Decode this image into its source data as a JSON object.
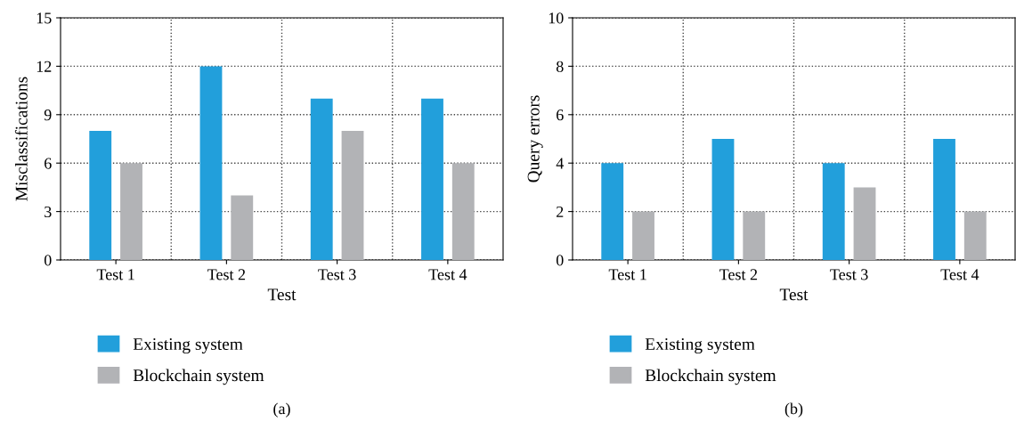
{
  "chart_data": [
    {
      "type": "bar",
      "categories": [
        "Test 1",
        "Test 2",
        "Test 3",
        "Test 4"
      ],
      "xlabel": "Test",
      "ylabel": "Misclassifications",
      "ylim": [
        0,
        15
      ],
      "yticks": [
        0,
        3,
        6,
        9,
        12,
        15
      ],
      "grid": true,
      "legend": "bottom",
      "series": [
        {
          "name": "Existing system",
          "color": "#229fdb",
          "values": [
            8,
            12,
            10,
            10
          ]
        },
        {
          "name": "Blockchain system",
          "color": "#b2b3b6",
          "values": [
            6,
            4,
            8,
            6
          ]
        }
      ],
      "annotations": [
        "(a)"
      ]
    },
    {
      "type": "bar",
      "categories": [
        "Test 1",
        "Test 2",
        "Test 3",
        "Test 4"
      ],
      "xlabel": "Test",
      "ylabel": "Query errors",
      "ylim": [
        0,
        10
      ],
      "yticks": [
        0,
        2,
        4,
        6,
        8,
        10
      ],
      "grid": true,
      "legend": "bottom",
      "series": [
        {
          "name": "Existing system",
          "color": "#229fdb",
          "values": [
            4,
            5,
            4,
            5
          ]
        },
        {
          "name": "Blockchain system",
          "color": "#b2b3b6",
          "values": [
            2,
            2,
            3,
            2
          ]
        }
      ],
      "annotations": [
        "(b)"
      ]
    }
  ]
}
